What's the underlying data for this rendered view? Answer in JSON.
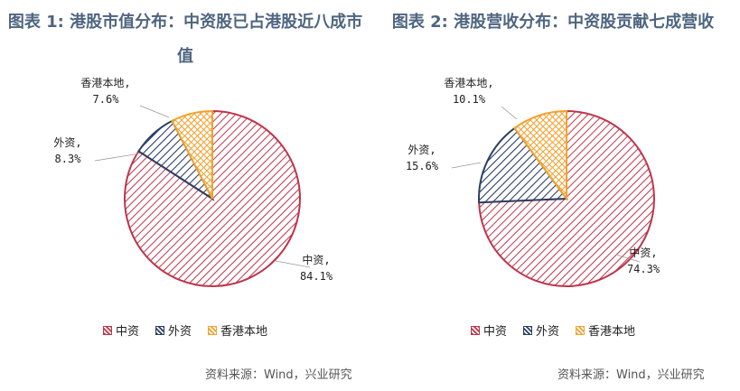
{
  "colors": {
    "zhongzi": "#c0344a",
    "waizi": "#2b3f62",
    "local": "#f2a12e",
    "title": "#4e6580"
  },
  "chart_data": [
    {
      "type": "pie",
      "title": "图表 1: 港股市值分布：中资股已占港股近八成市值",
      "slices": [
        {
          "name": "中资",
          "value": 84.1,
          "label": "中资,",
          "pct": "84.1%"
        },
        {
          "name": "外资",
          "value": 8.3,
          "label": "外资,",
          "pct": "8.3%"
        },
        {
          "name": "香港本地",
          "value": 7.6,
          "label": "香港本地,",
          "pct": "7.6%"
        }
      ],
      "legend": [
        "中资",
        "外资",
        "香港本地"
      ],
      "source": "资料来源：Wind，兴业研究"
    },
    {
      "type": "pie",
      "title": "图表 2: 港股营收分布：中资股贡献七成营收",
      "slices": [
        {
          "name": "中资",
          "value": 74.3,
          "label": "中资,",
          "pct": "74.3%"
        },
        {
          "name": "外资",
          "value": 15.6,
          "label": "外资,",
          "pct": "15.6%"
        },
        {
          "name": "香港本地",
          "value": 10.1,
          "label": "香港本地,",
          "pct": "10.1%"
        }
      ],
      "legend": [
        "中资",
        "外资",
        "香港本地"
      ],
      "source": "资料来源：Wind，兴业研究"
    }
  ]
}
